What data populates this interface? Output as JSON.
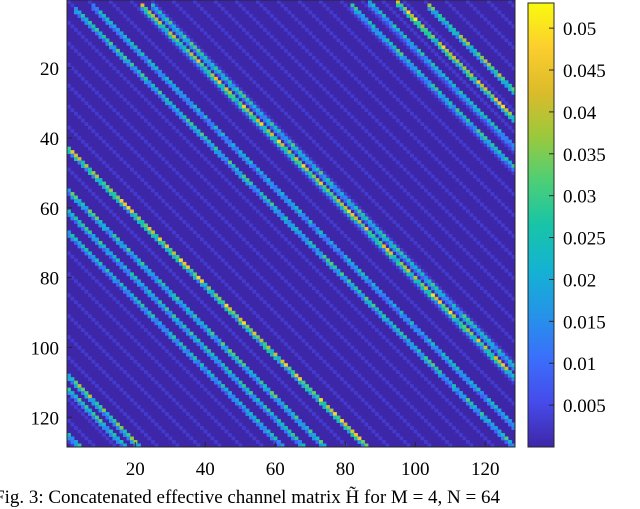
{
  "chart_data": {
    "type": "heatmap",
    "title": "",
    "xlabel": "",
    "ylabel": "",
    "rows": 128,
    "cols": 128,
    "xlim": [
      1,
      128
    ],
    "ylim": [
      1,
      128
    ],
    "x_ticks": [
      20,
      40,
      60,
      80,
      100,
      120
    ],
    "y_ticks": [
      20,
      40,
      60,
      80,
      100,
      120
    ],
    "colormap": "parula",
    "clim": [
      0,
      0.053
    ],
    "colorbar_ticks": [
      0.005,
      0.01,
      0.015,
      0.02,
      0.025,
      0.03,
      0.035,
      0.04,
      0.045,
      0.05
    ],
    "colorbar_tick_labels": [
      "0.005",
      "0.01",
      "0.015",
      "0.02",
      "0.025",
      "0.03",
      "0.035",
      "0.04",
      "0.045",
      "0.05"
    ],
    "background_value": 0.0015,
    "diagonal_bands": [
      {
        "start_col": 3,
        "intercept": 0,
        "peak_value": 0.032
      },
      {
        "start_col": 8,
        "intercept": 6,
        "peak_value": 0.026
      },
      {
        "start_col": 22,
        "intercept": 20,
        "peak_value": 0.05
      },
      {
        "start_col": 25,
        "intercept": 23,
        "peak_value": 0.032
      },
      {
        "start_col": 82,
        "intercept": 80,
        "peak_value": 0.032
      },
      {
        "start_col": 87,
        "intercept": 86,
        "peak_value": 0.028
      },
      {
        "start_col": 95,
        "intercept": 94,
        "peak_value": 0.052
      },
      {
        "start_col": 104,
        "intercept": 102,
        "peak_value": 0.04
      },
      {
        "start_col": 1,
        "intercept": -42,
        "peak_value": 0.05
      },
      {
        "start_col": 1,
        "intercept": -54,
        "peak_value": 0.034
      },
      {
        "start_col": 1,
        "intercept": -60,
        "peak_value": 0.03
      },
      {
        "start_col": 1,
        "intercept": -66,
        "peak_value": 0.028
      },
      {
        "start_col": 1,
        "intercept": -107,
        "peak_value": 0.04
      },
      {
        "start_col": 1,
        "intercept": -111,
        "peak_value": 0.032
      },
      {
        "start_col": 1,
        "intercept": -124,
        "peak_value": 0.03
      }
    ]
  },
  "caption": {
    "text": "Fig. 3: Concatenated effective channel matrix H̃ for M = 4, N = 64"
  }
}
